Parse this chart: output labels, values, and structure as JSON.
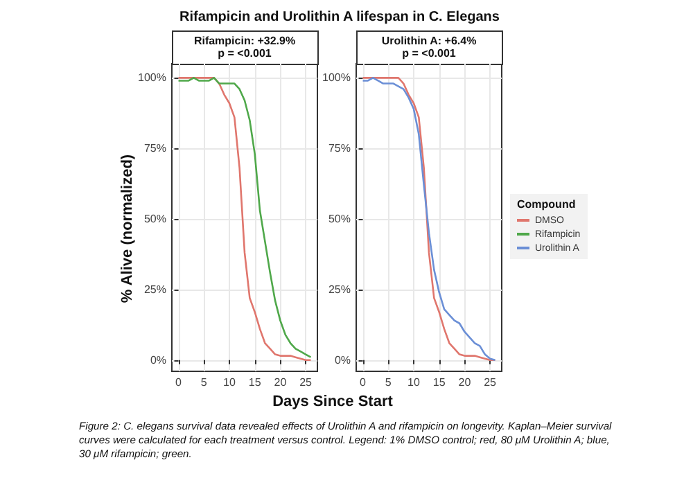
{
  "chart_data": [
    {
      "type": "line",
      "title": "Rifampicin and Urolithin A lifespan in C. Elegans",
      "subtitle": "Rifampicin: +32.9%\np = <0.001",
      "xlabel": "Days Since Start",
      "ylabel": "% Alive (normalized)",
      "annotations": [
        "Figure 2: C. elegans survival data revealed effects of Urolithin A and rifampicin on longevity.  Kaplan–Meier survival curves were calculated for each treatment versus control. Legend: 1% DMSO control; red, 80 μM Urolithin A; blue, 30 μM rifampicin; green."
      ],
      "x": [
        0,
        1,
        2,
        3,
        4,
        5,
        6,
        7,
        8,
        9,
        10,
        11,
        12,
        13,
        14,
        15,
        16,
        17,
        18,
        19,
        20,
        21,
        22,
        23,
        24,
        25,
        26
      ],
      "series": [
        {
          "name": "DMSO",
          "color": "#e0766d",
          "values": [
            100,
            100,
            100,
            100,
            100,
            100,
            100,
            100,
            98,
            94,
            91,
            86,
            68,
            38,
            22,
            17,
            11,
            6,
            4,
            2,
            1.5,
            1.5,
            1.5,
            1,
            0.5,
            0,
            0
          ]
        },
        {
          "name": "Rifampicin",
          "color": "#4fa84a",
          "values": [
            99,
            99,
            99,
            100,
            99,
            99,
            99,
            100,
            98,
            98,
            98,
            98,
            96,
            92,
            85,
            73,
            53,
            42,
            31,
            21,
            14,
            9,
            6,
            4,
            3,
            2,
            1
          ]
        }
      ],
      "xlim": [
        -1.3,
        27.3
      ],
      "xticks": [
        0,
        5,
        10,
        15,
        20,
        25
      ],
      "ylim": [
        -4,
        105
      ],
      "yticks": [
        {
          "value": 0,
          "label": "0%"
        },
        {
          "value": 25,
          "label": "25%"
        },
        {
          "value": 50,
          "label": "50%"
        },
        {
          "value": 75,
          "label": "75%"
        },
        {
          "value": 100,
          "label": "100%"
        }
      ],
      "grid": true,
      "line_style": "solid",
      "legend": "right"
    },
    {
      "type": "line",
      "subtitle": "Urolithin A: +6.4%\np = <0.001",
      "legend_title": "Compound",
      "legend": "right",
      "x": [
        0,
        1,
        2,
        3,
        4,
        5,
        6,
        7,
        8,
        9,
        10,
        11,
        12,
        13,
        14,
        15,
        16,
        17,
        18,
        19,
        20,
        21,
        22,
        23,
        24,
        25,
        26
      ],
      "series": [
        {
          "name": "DMSO",
          "color": "#e0766d",
          "values": [
            100,
            100,
            100,
            100,
            100,
            100,
            100,
            100,
            98,
            94,
            91,
            86,
            68,
            38,
            22,
            17,
            11,
            6,
            4,
            2,
            1.5,
            1.5,
            1.5,
            1,
            0.5,
            0,
            0
          ]
        },
        {
          "name": "Urolithin A",
          "color": "#6b8fd6",
          "values": [
            99,
            99,
            100,
            99,
            98,
            98,
            98,
            97,
            96,
            93,
            89,
            80,
            62,
            45,
            32,
            24,
            18,
            16,
            14,
            13,
            10,
            8,
            6,
            5,
            2,
            0.5,
            0
          ]
        }
      ],
      "xlim": [
        -1.3,
        27.3
      ],
      "xticks": [
        0,
        5,
        10,
        15,
        20,
        25
      ],
      "ylim": [
        -4,
        105
      ],
      "yticks": [
        {
          "value": 0,
          "label": "0%"
        },
        {
          "value": 25,
          "label": "25%"
        },
        {
          "value": 50,
          "label": "50%"
        },
        {
          "value": 75,
          "label": "75%"
        },
        {
          "value": 100,
          "label": "100%"
        }
      ],
      "grid": true,
      "line_style": "solid"
    }
  ]
}
